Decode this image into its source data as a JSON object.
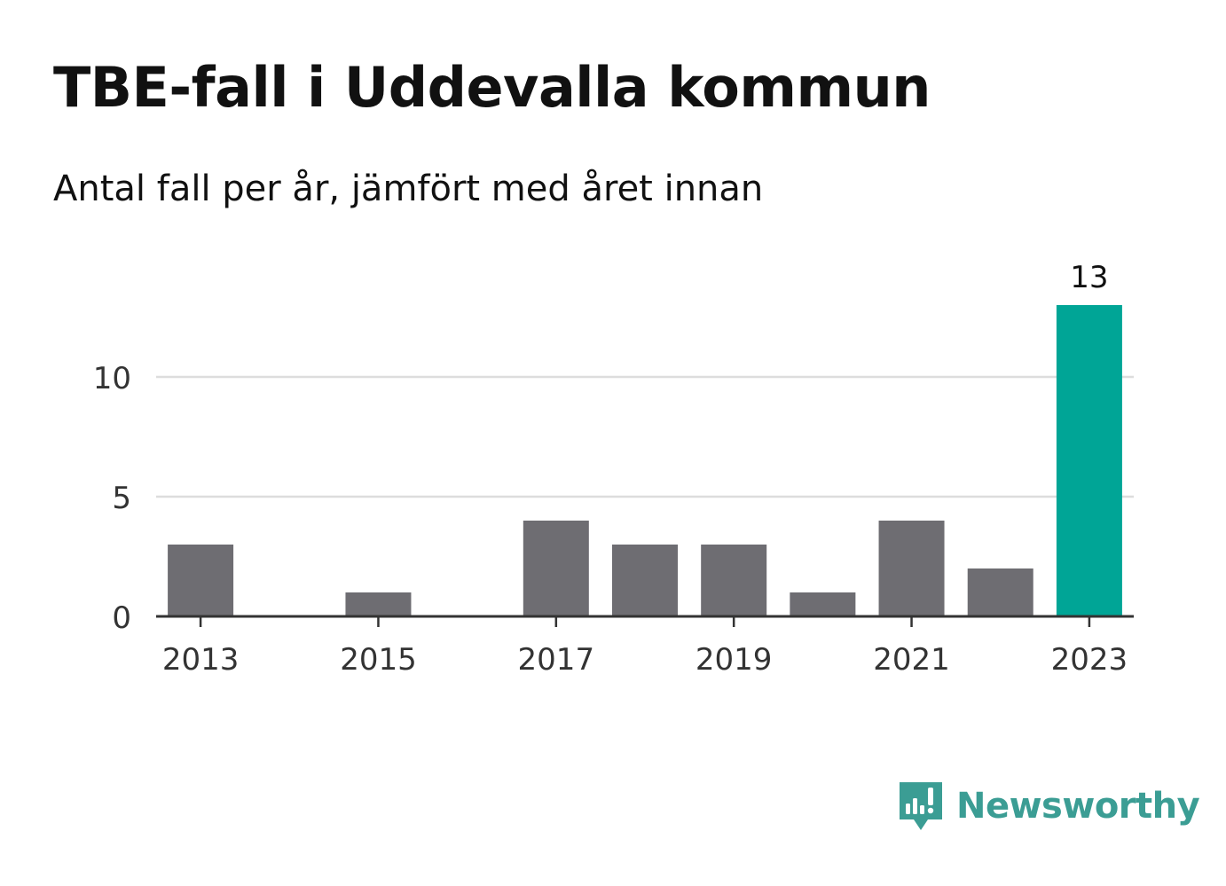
{
  "title": "TBE-fall i Uddevalla kommun",
  "subtitle": "Antal fall per år, jämfört med året innan",
  "brand": {
    "name": "Newsworthy",
    "icon": "bar-chart-speech-bubble-icon",
    "color": "#3b9d94"
  },
  "colors": {
    "bar": "#6e6d72",
    "highlight": "#00a596",
    "grid": "#dddddd",
    "axis": "#333333",
    "text": "#333333"
  },
  "chart_data": {
    "type": "bar",
    "categories": [
      "2013",
      "2014",
      "2015",
      "2016",
      "2017",
      "2018",
      "2019",
      "2020",
      "2021",
      "2022",
      "2023"
    ],
    "values": [
      3,
      0,
      1,
      0,
      4,
      3,
      3,
      1,
      4,
      2,
      13
    ],
    "x_tick_labels": [
      "2013",
      "2015",
      "2017",
      "2019",
      "2021",
      "2023"
    ],
    "y_ticks": [
      0,
      5,
      10
    ],
    "ylim": [
      0,
      13
    ],
    "highlight_category": "2023",
    "data_labels": [
      {
        "category": "2023",
        "label": "13"
      }
    ],
    "grid": true,
    "xlabel": "",
    "ylabel": ""
  }
}
